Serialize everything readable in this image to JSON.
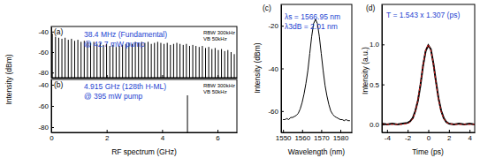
{
  "chart_data": [
    {
      "type": "stem",
      "title": "(a)",
      "x": [
        0.038,
        0.154,
        0.269,
        0.384,
        0.499,
        0.614,
        0.73,
        0.845,
        0.96,
        1.075,
        1.19,
        1.306,
        1.421,
        1.536,
        1.651,
        1.766,
        1.882,
        1.997,
        2.112,
        2.227,
        2.342,
        2.458,
        2.573,
        2.688,
        2.803,
        2.918,
        3.034,
        3.149,
        3.264,
        3.379,
        3.494,
        3.61,
        3.725,
        3.84,
        3.955,
        4.07,
        4.186,
        4.301,
        4.416,
        4.531,
        4.646,
        4.762,
        4.877,
        4.992,
        5.107,
        5.222,
        5.338,
        5.453,
        5.568,
        5.683,
        5.798,
        5.914,
        6.029,
        6.144,
        6.259,
        6.374,
        6.49,
        6.605
      ],
      "values": [
        -42,
        -45,
        -46,
        -47,
        -46,
        -48,
        -47,
        -49,
        -48,
        -50,
        -49,
        -50,
        -51,
        -50,
        -52,
        -51,
        -53,
        -52,
        -54,
        -53,
        -55,
        -54,
        -53,
        -52,
        -51,
        -52,
        -50,
        -51,
        -50,
        -51,
        -50,
        -52,
        -51,
        -50,
        -51,
        -52,
        -51,
        -53,
        -52,
        -51,
        -52,
        -53,
        -52,
        -54,
        -53,
        -54,
        -55,
        -54,
        -56,
        -55,
        -57,
        -56,
        -58,
        -57,
        -59,
        -58,
        -60,
        -62
      ],
      "color": "#000000",
      "xlim": [
        0,
        6.7
      ],
      "xticks": [
        0,
        2,
        4,
        6
      ],
      "ylim": [
        -85,
        -35
      ],
      "yticks": [
        -80,
        -60,
        -40
      ],
      "tick_labels": "y",
      "annotations": [
        {
          "text": "38.4 MHz (Fundamental)",
          "color": "#1c3fd1"
        },
        {
          "text": "@ 42.7 mW pump",
          "color": "#1c3fd1"
        },
        {
          "text": "RBW 300kHz",
          "color": "#000000"
        },
        {
          "text": "VB 50kHz",
          "color": "#000000"
        }
      ]
    },
    {
      "type": "stem",
      "title": "(b)",
      "x": [
        0.01,
        4.915
      ],
      "values": [
        -41,
        -50
      ],
      "color": "#000000",
      "xlim": [
        0,
        6.7
      ],
      "xticks": [
        0,
        2,
        4,
        6
      ],
      "ylim": [
        -85,
        -35
      ],
      "yticks": [
        -80,
        -60,
        -40
      ],
      "xlabel": "RF spectrum (GHz)",
      "ylabel": "Intensity (dBm)",
      "annotations": [
        {
          "text": "4.915 GHz (128th H-ML)",
          "color": "#1c3fd1"
        },
        {
          "text": "@ 395 mW pump",
          "color": "#1c3fd1"
        },
        {
          "text": "RBW 300kHz",
          "color": "#000000"
        },
        {
          "text": "VB 50kHz",
          "color": "#000000"
        }
      ]
    },
    {
      "type": "line",
      "title": "(c)",
      "x": [
        1550,
        1551,
        1552,
        1553,
        1554,
        1555,
        1556,
        1557,
        1558,
        1559,
        1560,
        1561,
        1562,
        1563,
        1564,
        1565,
        1566,
        1567,
        1568,
        1569,
        1570,
        1571,
        1572,
        1573,
        1574,
        1575,
        1576,
        1577,
        1578,
        1579,
        1580,
        1581,
        1582,
        1583,
        1584,
        1585
      ],
      "values": [
        -64,
        -64,
        -63.5,
        -64,
        -63,
        -63,
        -62.5,
        -62,
        -61,
        -59,
        -56,
        -52,
        -47,
        -41,
        -33,
        -25,
        -19,
        -17,
        -19,
        -25,
        -33,
        -41,
        -48,
        -53,
        -57,
        -60,
        -61.5,
        -62.5,
        -63,
        -63.5,
        -64,
        -64,
        -64.5,
        -64,
        -64.5,
        -64.5
      ],
      "color": "#000000",
      "line_style": "solid",
      "xlim": [
        1549,
        1586
      ],
      "xticks": [
        1550,
        1560,
        1570,
        1580
      ],
      "ylim": [
        -70,
        -10
      ],
      "yticks": [
        -60,
        -40,
        -20
      ],
      "xlabel": "Wavelength (nm)",
      "ylabel": "Intensity (dBm)",
      "annotations": [
        {
          "text": "λs = 1566.95 nm",
          "color": "#1c3fd1"
        },
        {
          "text": "λ3dB = 2.01 nm",
          "color": "#1c3fd1"
        }
      ]
    },
    {
      "type": "line",
      "title": "(d)",
      "x": [
        -4.5,
        -4,
        -3.5,
        -3,
        -2.5,
        -2,
        -1.75,
        -1.5,
        -1.25,
        -1,
        -0.75,
        -0.5,
        -0.25,
        0,
        0.25,
        0.5,
        0.75,
        1,
        1.25,
        1.5,
        1.75,
        2,
        2.5,
        3,
        3.5,
        4,
        4.5
      ],
      "series": [
        {
          "color": "#000000",
          "line_style": "solid",
          "values": [
            0.01,
            0.0,
            0.01,
            0.0,
            0.01,
            0.02,
            0.04,
            0.08,
            0.17,
            0.3,
            0.5,
            0.74,
            0.92,
            0.99,
            0.94,
            0.76,
            0.53,
            0.32,
            0.17,
            0.08,
            0.03,
            0.01,
            0.0,
            0.01,
            0.0,
            0.01,
            0.0
          ]
        },
        {
          "color": "#e02020",
          "line_style": "dashed",
          "values": [
            0,
            0,
            0,
            0,
            0,
            0.01,
            0.028,
            0.073,
            0.16,
            0.31,
            0.52,
            0.75,
            0.93,
            1.0,
            0.93,
            0.75,
            0.52,
            0.31,
            0.16,
            0.073,
            0.028,
            0.01,
            0,
            0,
            0,
            0,
            0
          ]
        }
      ],
      "xlim": [
        -4.5,
        4.5
      ],
      "xticks": [
        -4,
        -2,
        0,
        2,
        4
      ],
      "ylim": [
        -0.1,
        1.5
      ],
      "yticks": [
        {
          "value": 0,
          "label": "0.0"
        },
        {
          "value": 0.5,
          "label": "0.5"
        },
        {
          "value": 1,
          "label": "1.0"
        }
      ],
      "xlabel": "Time (ps)",
      "ylabel": "Intensity (a.u.)",
      "annotations": [
        {
          "text": "T = 1.543 x 1.307 (ps)",
          "color": "#1c3fd1"
        }
      ]
    }
  ]
}
